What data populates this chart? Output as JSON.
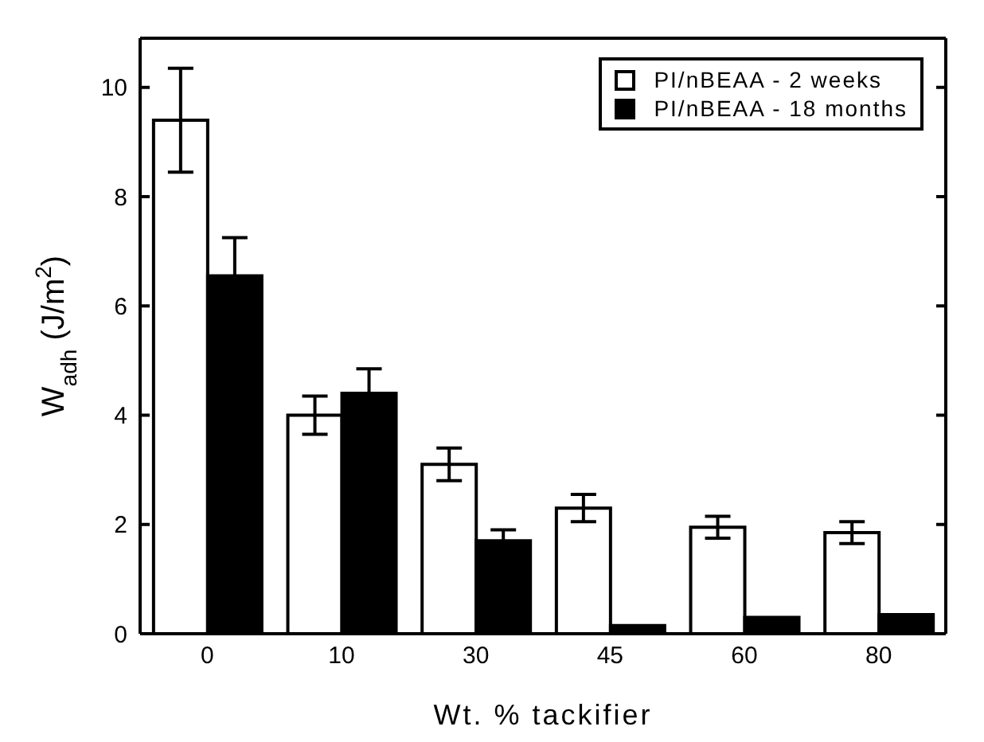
{
  "chart_data": {
    "type": "bar",
    "xlabel": "Wt. % tackifier",
    "ylabel": "W$_{adh}$ (J/m$^{2}$)",
    "categories": [
      "0",
      "10",
      "30",
      "45",
      "60",
      "80"
    ],
    "series": [
      {
        "name": "PI/nBEAA - 2 weeks",
        "color": "#ffffff",
        "values": [
          9.4,
          4.0,
          3.1,
          2.3,
          1.95,
          1.85
        ],
        "errors": [
          0.95,
          0.35,
          0.3,
          0.25,
          0.2,
          0.2
        ]
      },
      {
        "name": "PI/nBEAA - 18 months",
        "color": "#000000",
        "values": [
          6.55,
          4.4,
          1.7,
          0.15,
          0.3,
          0.35
        ],
        "errors": [
          0.7,
          0.45,
          0.2,
          null,
          null,
          null
        ]
      }
    ],
    "ylim": [
      0,
      10.9
    ],
    "yticks": [
      0,
      2,
      4,
      6,
      8,
      10
    ],
    "legend": "top right"
  }
}
